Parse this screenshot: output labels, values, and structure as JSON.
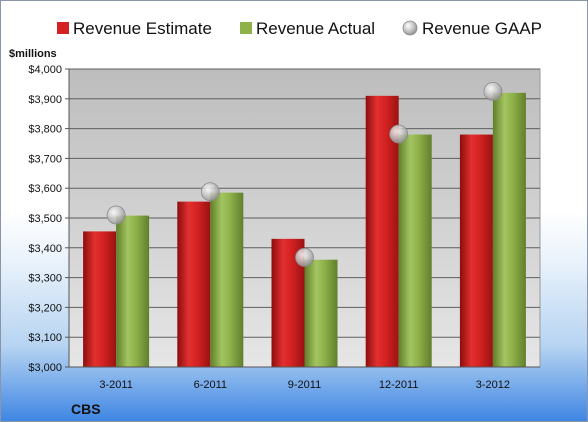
{
  "chart_data": {
    "type": "bar",
    "company": "CBS",
    "ylabel": "$millions",
    "categories": [
      "3-2011",
      "6-2011",
      "9-2011",
      "12-2011",
      "3-2012"
    ],
    "series": [
      {
        "name": "Revenue Estimate",
        "kind": "bar",
        "color": "#d42222",
        "values": [
          3455,
          3555,
          3430,
          3910,
          3780
        ]
      },
      {
        "name": "Revenue Actual",
        "kind": "bar",
        "color": "#8fb14a",
        "values": [
          3508,
          3585,
          3360,
          3780,
          3920
        ]
      },
      {
        "name": "Revenue GAAP",
        "kind": "marker",
        "color": "#b8b8b8",
        "values": [
          3510,
          3588,
          3368,
          3782,
          3925
        ]
      }
    ],
    "ylim": [
      3000,
      4000
    ],
    "ytick_step": 100,
    "ytick_labels": [
      "$3,000",
      "$3,100",
      "$3,200",
      "$3,300",
      "$3,400",
      "$3,500",
      "$3,600",
      "$3,700",
      "$3,800",
      "$3,900",
      "$4,000"
    ],
    "grid": true,
    "legend_position": "top"
  }
}
